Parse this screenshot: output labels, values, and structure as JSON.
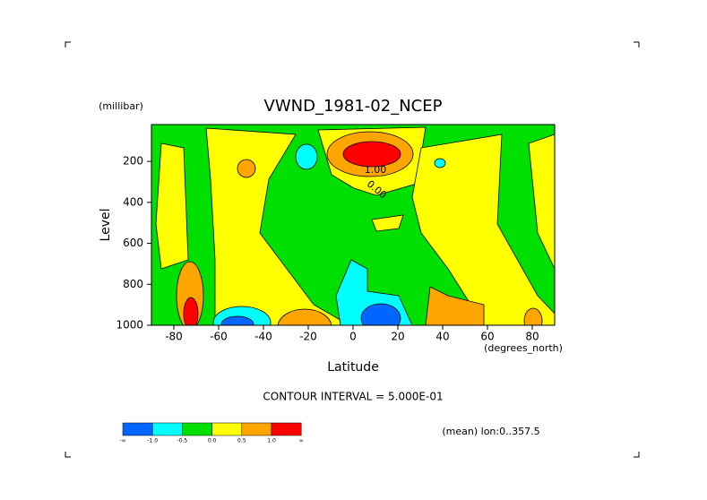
{
  "chart_data": {
    "type": "contour",
    "title": "VWND_1981-02_NCEP",
    "y_unit": "(millibar)",
    "y_label": "Level",
    "x_label": "Latitude",
    "x_unit": "(degrees_north)",
    "xlim": [
      -90,
      90
    ],
    "xticks": [
      -80,
      -60,
      -40,
      -20,
      0,
      20,
      40,
      60,
      80
    ],
    "ylim": [
      1000,
      20
    ],
    "yticks": [
      200,
      400,
      600,
      800,
      1000
    ],
    "contour_labels": [
      "1.00",
      "0.00"
    ],
    "contour_interval": "CONTOUR INTERVAL = 5.000E-01",
    "note": "(mean) lon:0..357.5",
    "colorbar": {
      "colors": [
        "#0066ff",
        "#00ffff",
        "#00e000",
        "#ffff00",
        "#ffa500",
        "#ff0000"
      ],
      "labels": [
        "-∞",
        "-1.0",
        "-0.5",
        "0.0",
        "0.5",
        "1.0",
        "∞"
      ]
    }
  }
}
